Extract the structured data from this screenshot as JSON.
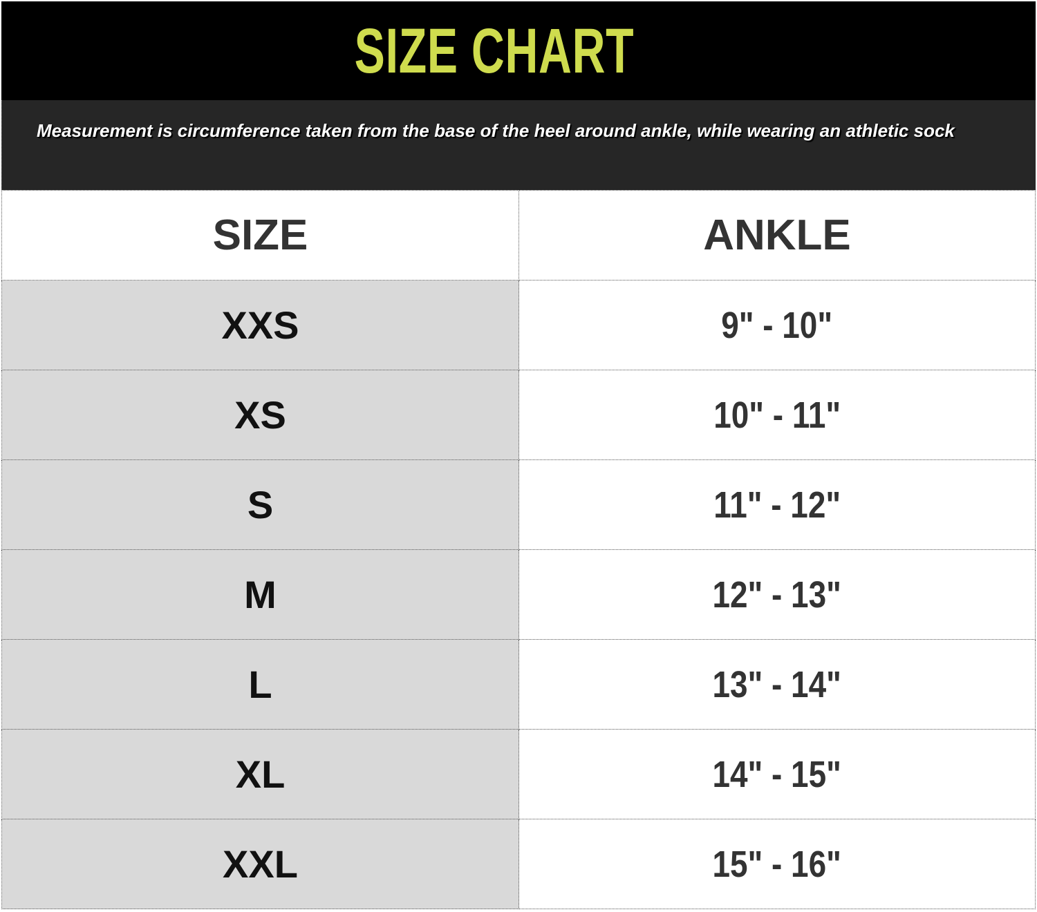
{
  "title": "SIZE CHART",
  "note": "Measurement is circumference taken from the base of the heel around ankle, while wearing an athletic sock",
  "colors": {
    "title": "#cfdc4e",
    "header_bg": "#000000",
    "note_bg": "#262626",
    "size_col_bg": "#d9d9d9"
  },
  "table": {
    "headers": [
      "SIZE",
      "ANKLE"
    ],
    "rows": [
      {
        "size": "XXS",
        "ankle": "9\" - 10\""
      },
      {
        "size": "XS",
        "ankle": "10\" - 11\""
      },
      {
        "size": "S",
        "ankle": "11\" - 12\""
      },
      {
        "size": "M",
        "ankle": "12\" - 13\""
      },
      {
        "size": "L",
        "ankle": "13\" - 14\""
      },
      {
        "size": "XL",
        "ankle": "14\" - 15\""
      },
      {
        "size": "XXL",
        "ankle": "15\" - 16\""
      }
    ]
  }
}
